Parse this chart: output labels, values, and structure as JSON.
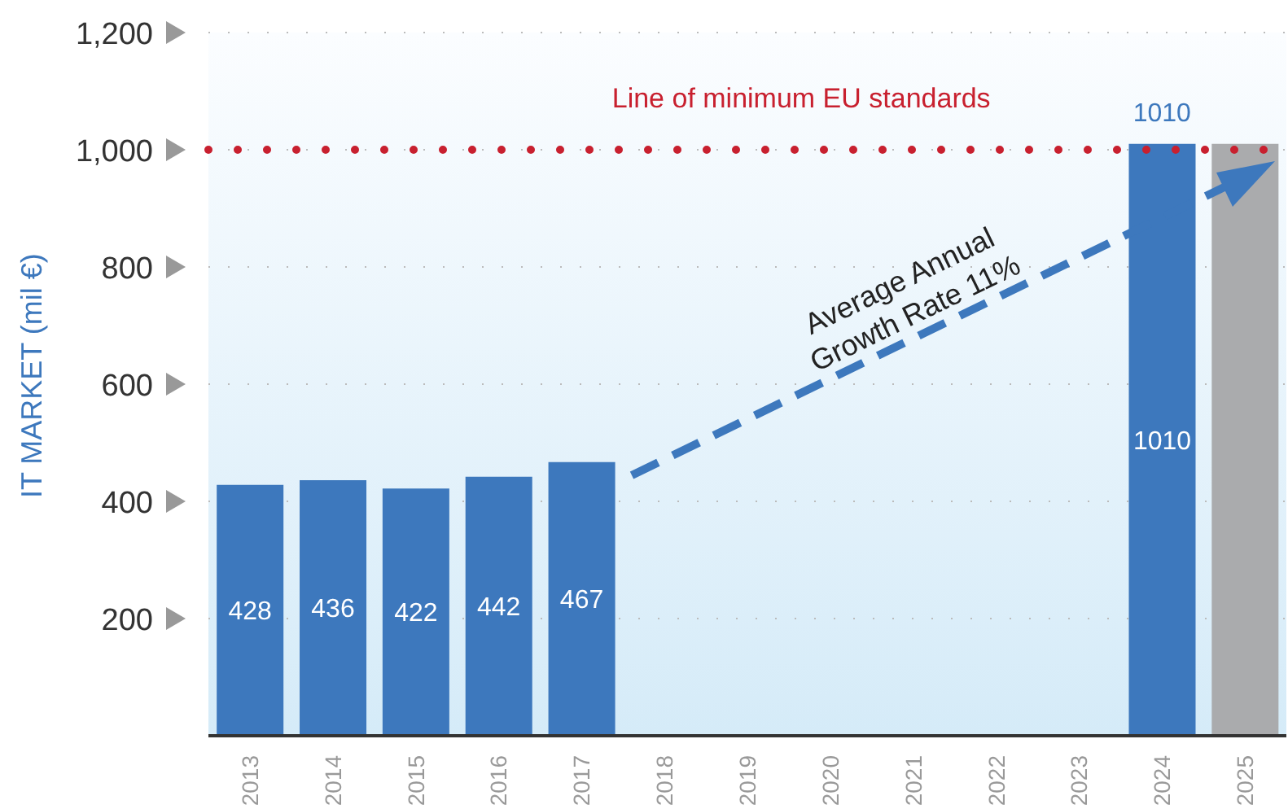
{
  "chart_data": {
    "type": "bar",
    "ylabel": "IT MARKET (mil €)",
    "categories": [
      "2013",
      "2014",
      "2015",
      "2016",
      "2017",
      "2018",
      "2019",
      "2020",
      "2021",
      "2022",
      "2023",
      "2024",
      "2025"
    ],
    "values": [
      428,
      436,
      422,
      442,
      467,
      null,
      null,
      null,
      null,
      null,
      null,
      1010,
      1010
    ],
    "colors": [
      "#3d78bd",
      "#3d78bd",
      "#3d78bd",
      "#3d78bd",
      "#3d78bd",
      "#3d78bd",
      "#3d78bd",
      "#3d78bd",
      "#3d78bd",
      "#3d78bd",
      "#3d78bd",
      "#3d78bd",
      "#aaabad"
    ],
    "value_labels": [
      "428",
      "436",
      "422",
      "442",
      "467",
      null,
      null,
      null,
      null,
      null,
      null,
      "1010",
      null
    ],
    "ylim": [
      0,
      1200
    ],
    "yticks": [
      200,
      400,
      600,
      800,
      {
        "value": 1000,
        "label": "1,000"
      },
      {
        "value": 1200,
        "label": "1,200"
      }
    ],
    "grid": "y",
    "ref_lines": [
      {
        "axis": "y",
        "value": 1000,
        "label": "Line of minimum EU standards",
        "color": "#c8202f",
        "line_style": "dotted"
      }
    ],
    "annotations": [
      {
        "text": "1010",
        "x": "2024",
        "y": 1010
      },
      "Average Annual\nGrowth Rate 11%"
    ]
  }
}
